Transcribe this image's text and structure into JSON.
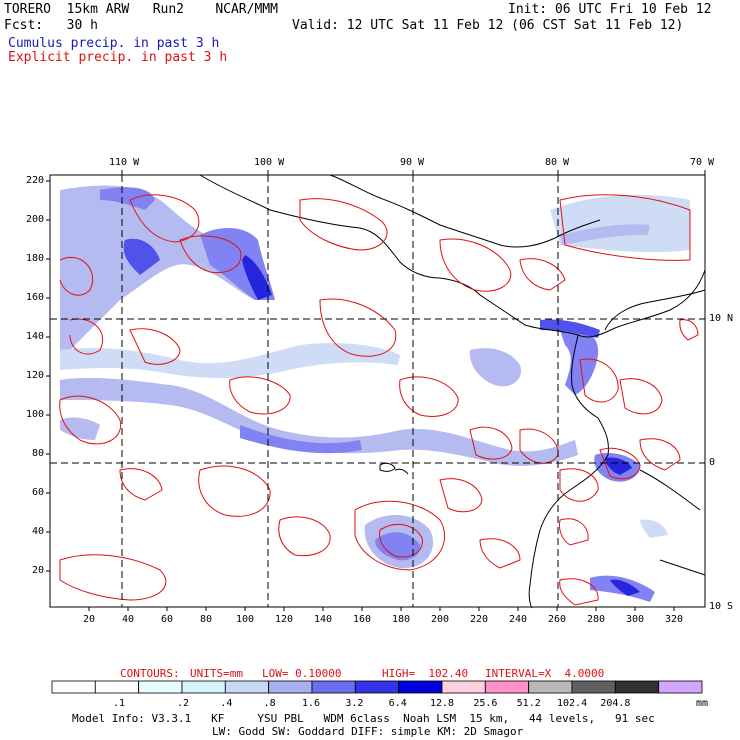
{
  "header": {
    "left_line1": "TORERO  15km ARW   Run2    NCAR/MMM",
    "left_line2": "Fcst:   30 h",
    "right_line1": "Init: 06 UTC Fri 10 Feb 12",
    "right_line2": "Valid: 12 UTC Sat 11 Feb 12 (06 CST Sat 11 Feb 12)",
    "legend_cumulus": "Cumulus precip. in past 3 h",
    "legend_explicit": "Explicit precip. in past 3 h"
  },
  "axes": {
    "lon_labels": [
      "110 W",
      "100 W",
      "90 W",
      "80 W",
      "70 W"
    ],
    "lat_labels": [
      "10 N",
      "0",
      "10 S"
    ],
    "y_ticks": [
      "220",
      "200",
      "180",
      "160",
      "140",
      "120",
      "100",
      "80",
      "60",
      "40",
      "20"
    ],
    "x_ticks": [
      "20",
      "40",
      "60",
      "80",
      "100",
      "120",
      "140",
      "160",
      "180",
      "200",
      "220",
      "240",
      "260",
      "280",
      "300",
      "320"
    ]
  },
  "contours_line": {
    "label": "CONTOURS:",
    "units": "UNITS=mm",
    "low": "LOW= 0.10000",
    "high": "HIGH=  102.40",
    "interval": "INTERVAL=X  4.0000"
  },
  "colorbar": {
    "labels": [
      ".1",
      ".2",
      ".4",
      ".8",
      "1.6",
      "3.2",
      "6.4",
      "12.8",
      "25.6",
      "51.2",
      "102.4",
      "204.8"
    ],
    "unit": "mm",
    "colors": [
      "#ffffff",
      "#ffffff",
      "#e8ffff",
      "#d6f3fb",
      "#c6d8f4",
      "#a9b0ef",
      "#6c6ef0",
      "#3333e8",
      "#0000d8",
      "#ffd0dc",
      "#ff90c8",
      "#b8b8b8",
      "#606060",
      "#303030",
      "#d2a6ff"
    ]
  },
  "footer": {
    "line1": "Model Info: V3.3.1   KF     YSU PBL   WDM 6class  Noah LSM  15 km,   44 levels,   91 sec",
    "line2": "LW: Godd SW: Goddard DIFF: simple KM: 2D Smagor"
  }
}
